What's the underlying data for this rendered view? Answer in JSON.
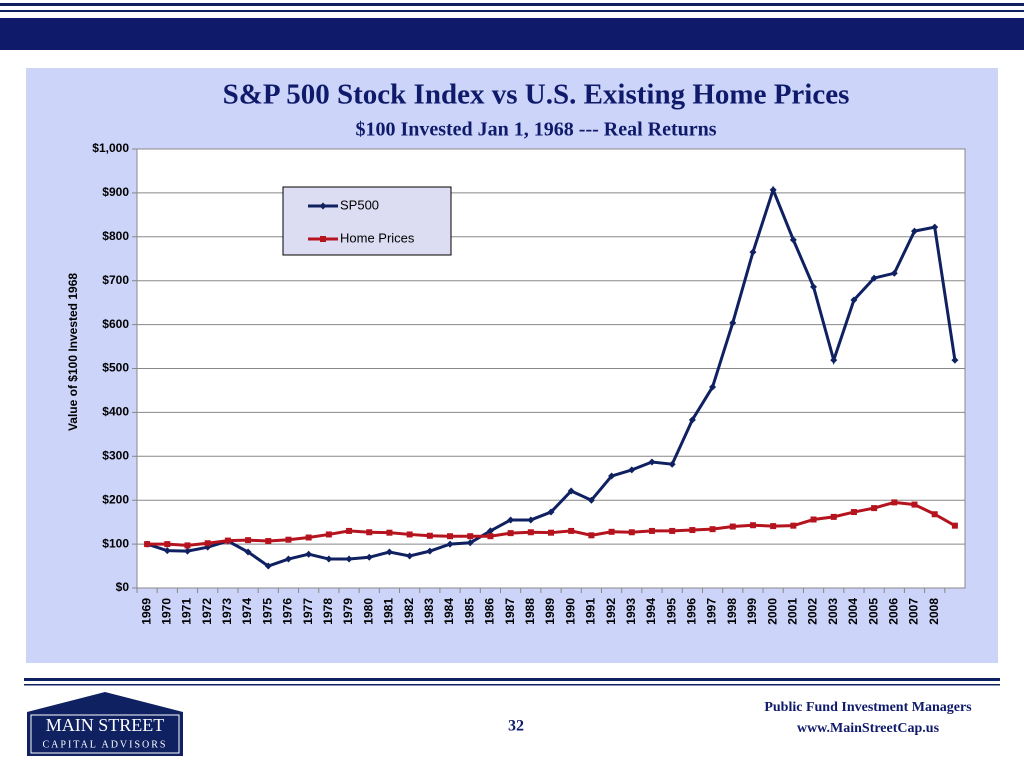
{
  "slide_number": "32",
  "footer": {
    "company": "Public Fund Investment Managers",
    "website": "www.MainStreetCap.us"
  },
  "logo": {
    "line1": "MAIN STREET",
    "line2": "CAPITAL ADVISORS"
  },
  "chart_data": {
    "type": "line",
    "title": "S&P 500 Stock Index vs U.S. Existing Home Prices",
    "subtitle": "$100 Invested Jan 1, 1968 --- Real Returns",
    "y_label": "Value of $100 Invested 1968",
    "categories": [
      "1969",
      "1970",
      "1971",
      "1972",
      "1973",
      "1974",
      "1975",
      "1976",
      "1977",
      "1978",
      "1979",
      "1980",
      "1981",
      "1982",
      "1983",
      "1984",
      "1985",
      "1986",
      "1987",
      "1988",
      "1989",
      "1990",
      "1991",
      "1992",
      "1993",
      "1994",
      "1995",
      "1996",
      "1997",
      "1998",
      "1999",
      "2000",
      "2001",
      "2002",
      "2003",
      "2004",
      "2005",
      "2006",
      "2007",
      "2008",
      null
    ],
    "series": [
      {
        "name": "SP500",
        "color": "#0f2160",
        "marker": "diamond",
        "values": [
          100,
          85,
          84,
          93,
          107,
          82,
          50,
          66,
          77,
          66,
          66,
          70,
          82,
          73,
          84,
          100,
          103,
          130,
          155,
          155,
          173,
          221,
          200,
          255,
          269,
          287,
          282,
          383,
          458,
          604,
          765,
          907,
          793,
          686,
          519,
          656,
          706,
          717,
          813,
          822,
          519
        ]
      },
      {
        "name": "Home Prices",
        "color": "#b5141f",
        "marker": "square",
        "values": [
          100,
          100,
          97,
          102,
          108,
          109,
          107,
          110,
          115,
          122,
          130,
          127,
          126,
          122,
          119,
          118,
          118,
          118,
          125,
          127,
          126,
          130,
          120,
          128,
          127,
          130,
          130,
          132,
          134,
          140,
          143,
          141,
          142,
          156,
          162,
          173,
          182,
          195,
          190,
          168,
          142
        ]
      }
    ],
    "ylim": [
      0,
      1000
    ],
    "yticks": [
      {
        "value": 0,
        "label": "$0"
      },
      {
        "value": 100,
        "label": "$100"
      },
      {
        "value": 200,
        "label": "$200"
      },
      {
        "value": 300,
        "label": "$300"
      },
      {
        "value": 400,
        "label": "$400"
      },
      {
        "value": 500,
        "label": "$500"
      },
      {
        "value": 600,
        "label": "$600"
      },
      {
        "value": 700,
        "label": "$700"
      },
      {
        "value": 800,
        "label": "$800"
      },
      {
        "value": 900,
        "label": "$900"
      },
      {
        "value": 1000,
        "label": "$1,000"
      }
    ],
    "grid": true,
    "legend": "top-left"
  }
}
